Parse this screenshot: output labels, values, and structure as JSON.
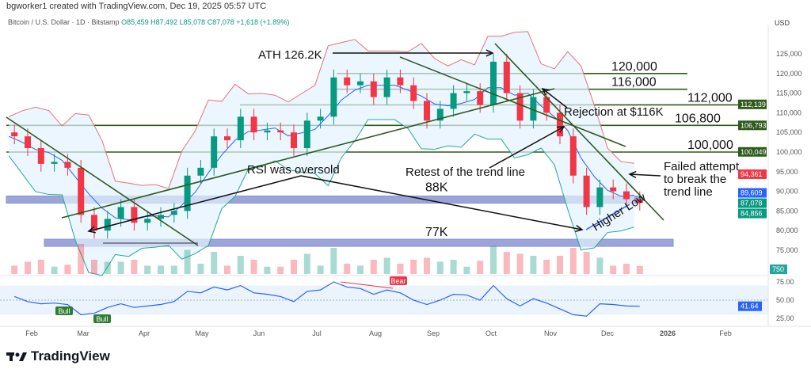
{
  "credit": "bgworker1 created with TradingView.com, Dec 19, 2025 05:57 UTC",
  "legend": {
    "symbol": "Bitcoin / U.S. Dollar · 1D · Bitstamp",
    "o": "O85,459",
    "h": "H87,492",
    "l": "L85,078",
    "c": "C87,078",
    "chg": "+1,618 (+1.89%)"
  },
  "currency": "USD",
  "brand": "TradingView",
  "colors": {
    "up": "#089981",
    "down": "#f23645",
    "bb": "#e57373",
    "bb_basis": "#2962ff",
    "levels": "#2e5a1c",
    "zone": "#5c6bc0",
    "rsi": "#2962ff"
  },
  "chart_data": {
    "type": "candlestick",
    "note_resolution": "weekly approximation of daily candles",
    "x_ticks": [
      "Feb",
      "Mar",
      "Apr",
      "May",
      "Jun",
      "Jul",
      "Aug",
      "Sep",
      "Oct",
      "Nov",
      "Dec",
      "2026",
      "Feb"
    ],
    "y_ticks": [
      "125,000",
      "120,000",
      "115,000",
      "110,000",
      "105,000",
      "100,000",
      "95,000",
      "90,000",
      "85,000",
      "80,000",
      "75,000"
    ],
    "ylim": [
      70000,
      130000
    ],
    "dates": [
      "2025-01-20",
      "2025-01-27",
      "2025-02-03",
      "2025-02-10",
      "2025-02-17",
      "2025-02-24",
      "2025-03-03",
      "2025-03-10",
      "2025-03-17",
      "2025-03-24",
      "2025-03-31",
      "2025-04-07",
      "2025-04-14",
      "2025-04-21",
      "2025-04-28",
      "2025-05-05",
      "2025-05-12",
      "2025-05-19",
      "2025-05-26",
      "2025-06-02",
      "2025-06-09",
      "2025-06-16",
      "2025-06-23",
      "2025-06-30",
      "2025-07-07",
      "2025-07-14",
      "2025-07-21",
      "2025-07-28",
      "2025-08-04",
      "2025-08-11",
      "2025-08-18",
      "2025-08-25",
      "2025-09-01",
      "2025-09-08",
      "2025-09-15",
      "2025-09-22",
      "2025-09-29",
      "2025-10-06",
      "2025-10-13",
      "2025-10-20",
      "2025-10-27",
      "2025-11-03",
      "2025-11-10",
      "2025-11-17",
      "2025-11-24",
      "2025-12-01",
      "2025-12-08",
      "2025-12-15"
    ],
    "close": [
      104000,
      101000,
      97000,
      97500,
      96000,
      84000,
      80000,
      83000,
      86000,
      82000,
      83000,
      84000,
      85000,
      94000,
      96000,
      104000,
      103000,
      109000,
      105000,
      105500,
      105000,
      101000,
      108000,
      109000,
      119000,
      117000,
      118000,
      114000,
      119000,
      117000,
      113000,
      108000,
      111000,
      115000,
      115500,
      112000,
      123000,
      115000,
      108000,
      114000,
      110000,
      104000,
      94000,
      86000,
      91000,
      90000,
      88000,
      87078
    ],
    "rsi": [
      55,
      48,
      45,
      46,
      44,
      30,
      32,
      40,
      45,
      40,
      42,
      44,
      48,
      62,
      60,
      68,
      64,
      70,
      60,
      58,
      55,
      48,
      62,
      64,
      75,
      68,
      66,
      58,
      64,
      60,
      50,
      44,
      50,
      58,
      57,
      50,
      70,
      52,
      42,
      52,
      46,
      38,
      30,
      28,
      45,
      44,
      42,
      41.64
    ],
    "rsi_ticks": [
      "75.00",
      "50.00",
      "25.00"
    ],
    "price_tags": [
      {
        "v": "112,139",
        "c": "#2e5a1c"
      },
      {
        "v": "106,793",
        "c": "#2e5a1c"
      },
      {
        "v": "100,049",
        "c": "#2e5a1c"
      },
      {
        "v": "94,361",
        "c": "#f23645"
      },
      {
        "v": "89,609",
        "c": "#2962ff"
      },
      {
        "v": "87,078",
        "c": "#089981"
      },
      {
        "v": "84,856",
        "c": "#089981"
      }
    ],
    "volume_tag": "750",
    "rsi_tag": "41.64",
    "levels": [
      {
        "label": "120,000",
        "v": 120000
      },
      {
        "label": "116,000",
        "v": 116000
      },
      {
        "label": "112,000",
        "v": 112000
      },
      {
        "label": "106,800",
        "v": 106800
      },
      {
        "label": "100,000",
        "v": 100000
      }
    ],
    "zones": [
      {
        "label": "88K",
        "v": 88000
      },
      {
        "label": "77K",
        "v": 77000
      }
    ],
    "annotations": {
      "ath": "ATH 126.2K",
      "rejection": "Rejection at $116K",
      "retest": "Retest of the trend line",
      "rsi": "RSI was oversold",
      "failed1": "Failed attempt",
      "failed2": "to break the",
      "failed3": "trend line",
      "higher_low": "Higher Low",
      "bull": "Bull",
      "bear": "Bear"
    }
  }
}
